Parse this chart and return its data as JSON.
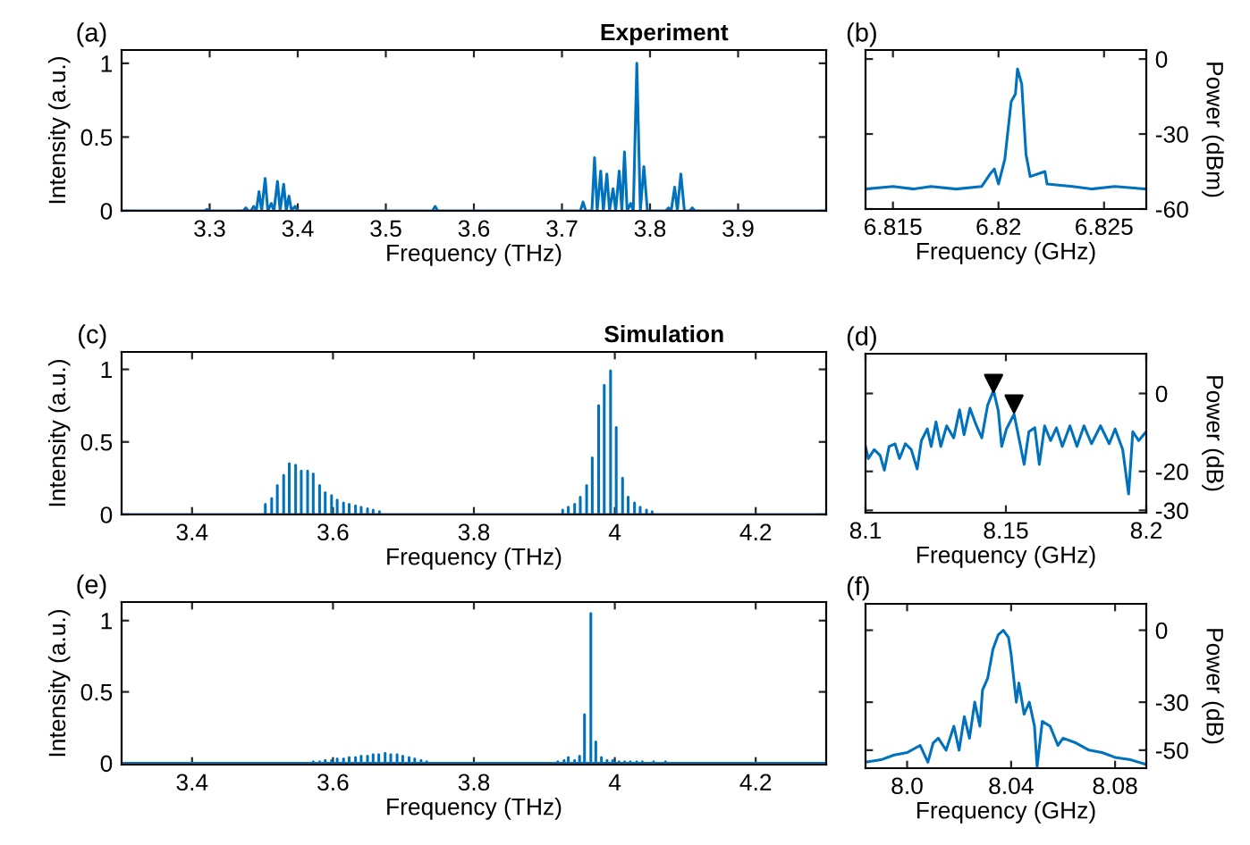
{
  "chart_data": [
    {
      "type": "line",
      "title": "Experiment",
      "annotations": [
        "(a)"
      ],
      "xlabel": "Frequency (THz)",
      "ylabel": "Intensity (a.u.)",
      "xlim": [
        3.2,
        4.0
      ],
      "xticks": [
        3.3,
        3.4,
        3.5,
        3.6,
        3.7,
        3.8,
        3.9
      ],
      "ylim": [
        0,
        1.09
      ],
      "yticks": [
        0,
        0.5,
        1
      ],
      "grid": false,
      "series": [
        {
          "color": "#0072bd",
          "x": [
            3.2,
            3.294,
            3.297,
            3.3,
            3.338,
            3.341,
            3.344,
            3.347,
            3.35,
            3.353,
            3.356,
            3.359,
            3.363,
            3.366,
            3.37,
            3.373,
            3.377,
            3.38,
            3.384,
            3.387,
            3.39,
            3.393,
            3.397,
            3.4,
            3.553,
            3.556,
            3.559,
            3.721,
            3.724,
            3.727,
            3.734,
            3.737,
            3.74,
            3.744,
            3.747,
            3.751,
            3.754,
            3.758,
            3.761,
            3.765,
            3.768,
            3.771,
            3.774,
            3.778,
            3.781,
            3.785,
            3.789,
            3.793,
            3.797,
            3.818,
            3.821,
            3.824,
            3.828,
            3.831,
            3.835,
            3.839,
            3.845,
            3.848,
            3.851,
            4.0
          ],
          "values": [
            0,
            0,
            0.01,
            0,
            0,
            0.02,
            0,
            0,
            0.03,
            0,
            0.13,
            0,
            0.22,
            0,
            0.05,
            0,
            0.2,
            0,
            0.18,
            0,
            0.1,
            0,
            0.03,
            0,
            0,
            0.03,
            0,
            0,
            0.06,
            0,
            0,
            0.36,
            0,
            0.27,
            0,
            0.25,
            0,
            0.15,
            0,
            0.27,
            0,
            0.4,
            0,
            0.05,
            0,
            1.0,
            0,
            0.3,
            0,
            0,
            0.02,
            0,
            0.16,
            0,
            0.25,
            0,
            0,
            0.02,
            0,
            0
          ]
        }
      ]
    },
    {
      "type": "line",
      "annotations": [
        "(b)"
      ],
      "xlabel": "Frequency (GHz)",
      "y2label": "Power (dBm)",
      "xlim": [
        6.8137,
        6.827
      ],
      "xticks": [
        6.815,
        6.82,
        6.825
      ],
      "y2lim": [
        -60,
        3.6
      ],
      "y2ticks": [
        -60,
        -30,
        0
      ],
      "grid": false,
      "series": [
        {
          "color": "#0072bd",
          "axis": "y2",
          "x": [
            6.8137,
            6.815,
            6.816,
            6.8168,
            6.818,
            6.8192,
            6.8196,
            6.8198,
            6.82,
            6.8203,
            6.8206,
            6.8208,
            6.8209,
            6.8211,
            6.8213,
            6.8215,
            6.8222,
            6.8223,
            6.8235,
            6.8244,
            6.8255,
            6.827
          ],
          "values": [
            -52,
            -51,
            -52,
            -51,
            -52,
            -51,
            -46,
            -44,
            -50,
            -40,
            -17,
            -14,
            -4,
            -10,
            -38,
            -47,
            -45,
            -50,
            -51,
            -52,
            -51,
            -52
          ]
        }
      ]
    },
    {
      "type": "line",
      "title": "Simulation",
      "annotations": [
        "(c)"
      ],
      "xlabel": "Frequency (THz)",
      "ylabel": "Intensity (a.u.)",
      "xlim": [
        3.3,
        4.3
      ],
      "xticks": [
        3.4,
        3.6,
        3.8,
        4,
        4.2
      ],
      "ylim": [
        0,
        1.12
      ],
      "yticks": [
        0,
        0.5,
        1
      ],
      "grid": false,
      "series": [
        {
          "color": "#0072bd",
          "x": [
            3.3,
            3.504,
            3.504,
            3.504,
            3.513,
            3.513,
            3.513,
            3.521,
            3.521,
            3.521,
            3.53,
            3.53,
            3.53,
            3.538,
            3.538,
            3.538,
            3.547,
            3.547,
            3.547,
            3.555,
            3.555,
            3.555,
            3.564,
            3.564,
            3.564,
            3.572,
            3.572,
            3.572,
            3.581,
            3.581,
            3.581,
            3.589,
            3.589,
            3.589,
            3.598,
            3.598,
            3.598,
            3.606,
            3.606,
            3.606,
            3.615,
            3.615,
            3.615,
            3.623,
            3.623,
            3.623,
            3.632,
            3.632,
            3.632,
            3.64,
            3.64,
            3.64,
            3.649,
            3.649,
            3.649,
            3.657,
            3.657,
            3.657,
            3.666,
            3.666,
            3.666,
            3.926,
            3.926,
            3.926,
            3.934,
            3.934,
            3.934,
            3.943,
            3.943,
            3.943,
            3.951,
            3.951,
            3.951,
            3.96,
            3.96,
            3.96,
            3.968,
            3.968,
            3.968,
            3.977,
            3.977,
            3.977,
            3.985,
            3.985,
            3.985,
            3.994,
            3.994,
            3.994,
            4.002,
            4.002,
            4.002,
            4.011,
            4.011,
            4.011,
            4.019,
            4.019,
            4.019,
            4.028,
            4.028,
            4.028,
            4.036,
            4.036,
            4.036,
            4.045,
            4.045,
            4.045,
            4.053,
            4.053,
            4.053,
            4.3
          ],
          "values": [
            0,
            0,
            0.07,
            0,
            0,
            0.11,
            0,
            0,
            0.2,
            0,
            0,
            0.27,
            0,
            0,
            0.35,
            0,
            0,
            0.34,
            0,
            0,
            0.3,
            0,
            0,
            0.3,
            0,
            0,
            0.28,
            0,
            0,
            0.2,
            0,
            0,
            0.15,
            0,
            0,
            0.13,
            0,
            0,
            0.1,
            0,
            0,
            0.08,
            0,
            0,
            0.07,
            0,
            0,
            0.06,
            0,
            0,
            0.05,
            0,
            0,
            0.04,
            0,
            0,
            0.03,
            0,
            0,
            0.02,
            0,
            0,
            0.03,
            0,
            0,
            0.05,
            0,
            0,
            0.07,
            0,
            0,
            0.12,
            0,
            0,
            0.2,
            0,
            0,
            0.39,
            0,
            0,
            0.75,
            0,
            0,
            0.89,
            0,
            0,
            0.99,
            0,
            0,
            0.6,
            0,
            0,
            0.25,
            0,
            0,
            0.12,
            0,
            0,
            0.08,
            0,
            0,
            0.05,
            0,
            0,
            0.03,
            0,
            0,
            0.02,
            0,
            0
          ]
        }
      ]
    },
    {
      "type": "line",
      "annotations": [
        "(d)"
      ],
      "xlabel": "Frequency (GHz)",
      "y2label": "Power (dB)",
      "xlim": [
        8.1,
        8.2
      ],
      "xticks": [
        8.1,
        8.15,
        8.2
      ],
      "y2lim": [
        -30.6,
        10.2
      ],
      "y2ticks": [
        -30,
        -20,
        0
      ],
      "grid": false,
      "series": [
        {
          "color": "#0072bd",
          "axis": "y2",
          "x": [
            8.1,
            8.101,
            8.1031,
            8.1052,
            8.1067,
            8.1084,
            8.1105,
            8.1121,
            8.1142,
            8.1163,
            8.1184,
            8.1199,
            8.122,
            8.1234,
            8.1251,
            8.1268,
            8.1289,
            8.1314,
            8.1335,
            8.1351,
            8.1372,
            8.1393,
            8.1414,
            8.1435,
            8.1456,
            8.1473,
            8.1485,
            8.1502,
            8.1529,
            8.1544,
            8.1565,
            8.1582,
            8.1603,
            8.1619,
            8.1638,
            8.1659,
            8.168,
            8.1701,
            8.1728,
            8.1753,
            8.1778,
            8.1805,
            8.1837,
            8.1868,
            8.1889,
            8.1916,
            8.1937,
            8.1952,
            8.1973,
            8.2
          ],
          "values": [
            -13.6,
            -16.7,
            -14.4,
            -15.9,
            -19.7,
            -13.6,
            -12.9,
            -16.7,
            -12.9,
            -14.4,
            -19.4,
            -12.1,
            -9.1,
            -13.6,
            -7.3,
            -13.6,
            -8.3,
            -11.4,
            -4.2,
            -10.6,
            -3.8,
            -7.9,
            -11.4,
            -3.0,
            0.8,
            -4.5,
            -13.6,
            -9.1,
            -5.3,
            -10.6,
            -18.2,
            -9.8,
            -8.8,
            -18.2,
            -8.3,
            -12.1,
            -8.8,
            -13.6,
            -8.3,
            -13.6,
            -8.3,
            -12.9,
            -8.3,
            -12.9,
            -9.1,
            -14.4,
            -25.8,
            -9.8,
            -12.1,
            -9.8
          ]
        },
        {
          "type": "scatter",
          "color": "#000000",
          "marker": "triangle",
          "axis": "y2",
          "x": [
            8.1456,
            8.1529
          ],
          "values": [
            2.6,
            -2.7
          ]
        }
      ]
    },
    {
      "type": "line",
      "annotations": [
        "(e)"
      ],
      "xlabel": "Frequency (THz)",
      "ylabel": "Intensity (a.u.)",
      "xlim": [
        3.3,
        4.3
      ],
      "xticks": [
        3.4,
        3.6,
        3.8,
        4,
        4.2
      ],
      "ylim": [
        -0.01,
        1.13
      ],
      "yticks": [
        0,
        0.5,
        1
      ],
      "grid": false,
      "series": [
        {
          "color": "#0072bd",
          "x": [
            3.3,
            3.572,
            3.572,
            3.572,
            3.581,
            3.581,
            3.581,
            3.589,
            3.589,
            3.589,
            3.598,
            3.598,
            3.598,
            3.606,
            3.606,
            3.606,
            3.615,
            3.615,
            3.615,
            3.623,
            3.623,
            3.623,
            3.632,
            3.632,
            3.632,
            3.64,
            3.64,
            3.64,
            3.649,
            3.649,
            3.649,
            3.657,
            3.657,
            3.657,
            3.665,
            3.665,
            3.665,
            3.674,
            3.674,
            3.674,
            3.682,
            3.682,
            3.682,
            3.691,
            3.691,
            3.691,
            3.699,
            3.699,
            3.699,
            3.708,
            3.708,
            3.708,
            3.716,
            3.716,
            3.716,
            3.725,
            3.725,
            3.725,
            3.733,
            3.733,
            3.733,
            3.919,
            3.919,
            3.919,
            3.928,
            3.928,
            3.928,
            3.934,
            3.934,
            3.934,
            3.943,
            3.943,
            3.943,
            3.95,
            3.95,
            3.95,
            3.957,
            3.957,
            3.957,
            3.966,
            3.966,
            3.966,
            3.973,
            3.973,
            3.973,
            3.981,
            3.981,
            3.981,
            3.989,
            3.989,
            3.989,
            3.997,
            3.997,
            3.997,
            4.006,
            4.006,
            4.006,
            4.014,
            4.014,
            4.014,
            4.022,
            4.022,
            4.022,
            4.031,
            4.031,
            4.031,
            4.039,
            4.039,
            4.039,
            4.055,
            4.055,
            4.055,
            4.072,
            4.072,
            4.072,
            4.3
          ],
          "values": [
            0,
            0,
            0.01,
            0,
            0,
            0.01,
            0,
            0,
            0.02,
            0,
            0,
            0.02,
            0,
            0,
            0.03,
            0,
            0,
            0.03,
            0,
            0,
            0.04,
            0,
            0,
            0.04,
            0,
            0,
            0.05,
            0,
            0,
            0.05,
            0,
            0,
            0.06,
            0,
            0,
            0.06,
            0,
            0,
            0.07,
            0,
            0,
            0.06,
            0,
            0,
            0.06,
            0,
            0,
            0.05,
            0,
            0,
            0.04,
            0,
            0,
            0.03,
            0,
            0,
            0.02,
            0,
            0,
            0.01,
            0,
            0,
            0.01,
            0,
            0,
            0.02,
            0,
            0,
            0.04,
            0,
            0,
            0.02,
            0,
            0,
            0.05,
            0,
            0,
            0.34,
            0,
            0,
            1.05,
            0,
            0,
            0.15,
            0,
            0,
            0.04,
            0,
            0,
            0.02,
            0,
            0,
            0.02,
            0,
            0,
            0.01,
            0,
            0,
            0.01,
            0,
            0,
            0.01,
            0,
            0,
            0.01,
            0,
            0,
            0.01,
            0,
            0,
            0.01,
            0,
            0,
            0.01,
            0,
            0
          ]
        }
      ]
    },
    {
      "type": "line",
      "annotations": [
        "(f)"
      ],
      "xlabel": "Frequency (GHz)",
      "y2label": "Power (dB)",
      "xlim": [
        7.984,
        8.092
      ],
      "xticks": [
        {
          "value": 8.0,
          "label": "8.0"
        },
        8.04,
        8.08
      ],
      "y2lim": [
        -57.5,
        11
      ],
      "y2ticks": [
        -50,
        -30,
        0
      ],
      "grid": false,
      "series": [
        {
          "color": "#0072bd",
          "axis": "y2",
          "x": [
            7.984,
            7.99,
            7.995,
            8.0,
            8.005,
            8.008,
            8.01,
            8.012,
            8.015,
            8.018,
            8.02,
            8.022,
            8.024,
            8.026,
            8.028,
            8.029,
            8.031,
            8.033,
            8.035,
            8.037,
            8.039,
            8.04,
            8.041,
            8.042,
            8.043,
            8.045,
            8.047,
            8.049,
            8.05,
            8.052,
            8.055,
            8.058,
            8.06,
            8.065,
            8.07,
            8.075,
            8.08,
            8.086,
            8.092
          ],
          "values": [
            -55,
            -54,
            -52,
            -51,
            -48,
            -55,
            -47,
            -45,
            -50,
            -40,
            -50,
            -36,
            -45,
            -30,
            -40,
            -25,
            -20,
            -8,
            -2,
            0,
            -3,
            -10,
            -20,
            -30,
            -22,
            -35,
            -30,
            -40,
            -57,
            -38,
            -40,
            -48,
            -45,
            -47,
            -50,
            -51,
            -53,
            -54,
            -56
          ]
        }
      ]
    }
  ]
}
